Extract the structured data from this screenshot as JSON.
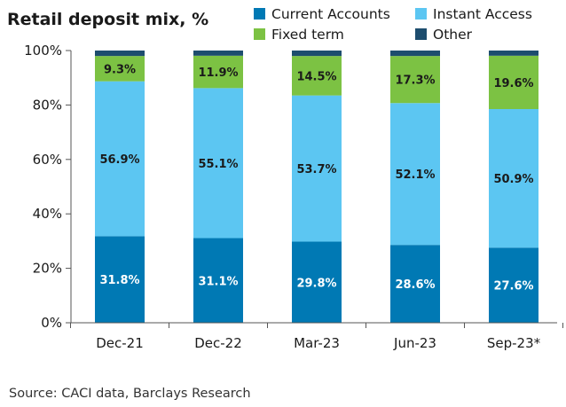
{
  "chart_data": {
    "type": "bar",
    "stacked": true,
    "title": "Retail deposit mix, %",
    "categories": [
      "Dec-21",
      "Dec-22",
      "Mar-23",
      "Jun-23",
      "Sep-23*"
    ],
    "series": [
      {
        "name": "Current Accounts",
        "color": "#0079b4",
        "values": [
          31.8,
          31.1,
          29.8,
          28.6,
          27.6
        ],
        "labels": [
          "31.8%",
          "31.1%",
          "29.8%",
          "28.6%",
          "27.6%"
        ]
      },
      {
        "name": "Instant Access",
        "color": "#5cc6f2",
        "values": [
          56.9,
          55.1,
          53.7,
          52.1,
          50.9
        ],
        "labels": [
          "56.9%",
          "55.1%",
          "53.7%",
          "52.1%",
          "50.9%"
        ]
      },
      {
        "name": "Fixed term",
        "color": "#7cc243",
        "values": [
          9.3,
          11.9,
          14.5,
          17.3,
          19.6
        ],
        "labels": [
          "9.3%",
          "11.9%",
          "14.5%",
          "17.3%",
          "19.6%"
        ]
      },
      {
        "name": "Other",
        "color": "#1d4d6e",
        "values": [
          2.0,
          1.9,
          2.0,
          2.0,
          1.9
        ]
      }
    ],
    "ylim": [
      0,
      100
    ],
    "yticks": [
      "0%",
      "20%",
      "40%",
      "60%",
      "80%",
      "100%"
    ],
    "legend": "top-right",
    "grid": false,
    "source": "Source: CACI data, Barclays Research"
  }
}
